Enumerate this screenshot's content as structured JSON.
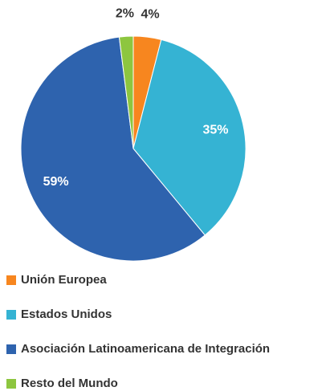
{
  "chart_data": {
    "type": "pie",
    "categories": [
      "Unión Europea",
      "Estados Unidos",
      "Asociación Latinoamericana de Integración",
      "Resto del Mundo"
    ],
    "values": [
      4,
      35,
      59,
      2
    ],
    "value_labels": [
      "4%",
      "35%",
      "59%",
      "2%"
    ],
    "colors": [
      "#f7861f",
      "#35b3d3",
      "#2e63ae",
      "#8dc63f"
    ],
    "legend": "bottom"
  }
}
